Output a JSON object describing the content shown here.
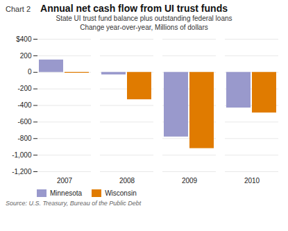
{
  "chart_data": {
    "type": "bar",
    "title": "Annual net cash flow from UI trust funds",
    "annotations": [
      "Chart 2"
    ],
    "subtitle": [
      "State UI trust fund balance plus outstanding federal loans",
      "Change year-over-year, Millions of dollars"
    ],
    "source": "Source: U.S. Treasury, Bureau of the Public Debt",
    "categories": [
      "2007",
      "2008",
      "2009",
      "2010"
    ],
    "series": [
      {
        "name": "Minnesota",
        "color": "#9999cc",
        "values": [
          150,
          -30,
          -780,
          -430
        ]
      },
      {
        "name": "Wisconsin",
        "color": "#e07b00",
        "values": [
          -10,
          -330,
          -920,
          -490
        ]
      }
    ],
    "ylim": [
      -1200,
      400
    ],
    "yticks": [
      {
        "value": -1200,
        "label": "-1,200"
      },
      {
        "value": -1000,
        "label": "-1,000"
      },
      -800,
      -600,
      -400,
      -200,
      0,
      200,
      {
        "value": 400,
        "label": "$400"
      }
    ],
    "grid": true,
    "legend": "lower left"
  }
}
